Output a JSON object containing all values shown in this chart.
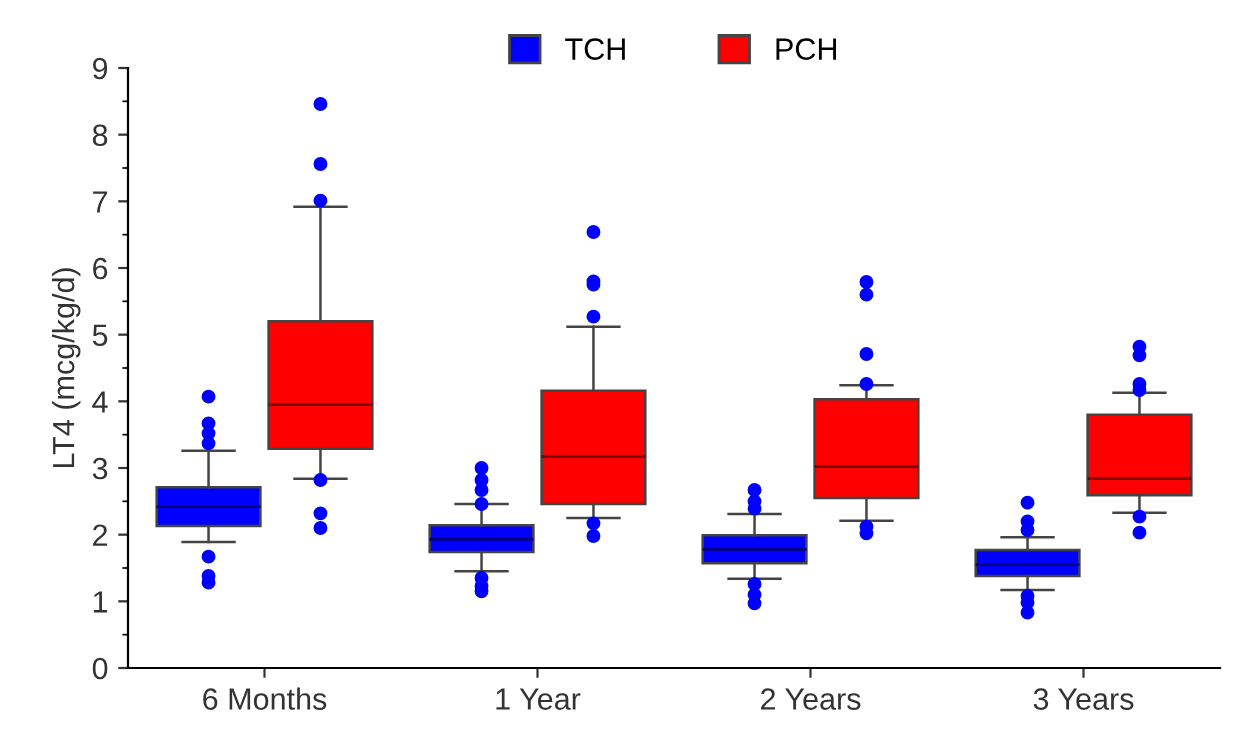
{
  "chart_data": {
    "type": "box",
    "ylabel": "LT4 (mcg/kg/d)",
    "categories": [
      "6 Months",
      "1 Year",
      "2 Years",
      "3 Years"
    ],
    "ylim": [
      0,
      9
    ],
    "yticks": [
      0,
      1,
      2,
      3,
      4,
      5,
      6,
      7,
      8,
      9
    ],
    "grid": false,
    "legend": "top",
    "series": [
      {
        "name": "TCH",
        "color": "#0000ff",
        "boxes": [
          {
            "low": 1.89,
            "q1": 2.13,
            "median": 2.42,
            "q3": 2.71,
            "high": 3.26,
            "outliers": [
              4.07,
              3.67,
              3.52,
              3.37,
              1.67,
              1.38,
              1.28
            ]
          },
          {
            "low": 1.45,
            "q1": 1.74,
            "median": 1.93,
            "q3": 2.14,
            "high": 2.46,
            "outliers": [
              3.0,
              2.82,
              2.67,
              2.46,
              1.35,
              1.23,
              1.15
            ]
          },
          {
            "low": 1.34,
            "q1": 1.57,
            "median": 1.78,
            "q3": 1.99,
            "high": 2.31,
            "outliers": [
              2.67,
              2.5,
              2.39,
              1.26,
              1.1,
              0.97
            ]
          },
          {
            "low": 1.17,
            "q1": 1.38,
            "median": 1.55,
            "q3": 1.77,
            "high": 1.96,
            "outliers": [
              2.48,
              2.2,
              2.07,
              1.08,
              0.98,
              0.83
            ]
          }
        ]
      },
      {
        "name": "PCH",
        "color": "#ff0000",
        "boxes": [
          {
            "low": 2.84,
            "q1": 3.29,
            "median": 3.95,
            "q3": 5.2,
            "high": 6.92,
            "outliers": [
              8.46,
              7.56,
              7.01,
              2.82,
              2.32,
              2.1
            ]
          },
          {
            "low": 2.25,
            "q1": 2.46,
            "median": 3.17,
            "q3": 4.16,
            "high": 5.12,
            "outliers": [
              6.54,
              5.8,
              5.75,
              5.27,
              2.17,
              1.98
            ]
          },
          {
            "low": 2.21,
            "q1": 2.55,
            "median": 3.02,
            "q3": 4.03,
            "high": 4.24,
            "outliers": [
              5.79,
              5.6,
              4.71,
              4.26,
              2.12,
              2.02
            ]
          },
          {
            "low": 2.33,
            "q1": 2.59,
            "median": 2.84,
            "q3": 3.8,
            "high": 4.13,
            "outliers": [
              4.82,
              4.69,
              4.26,
              4.17,
              2.27,
              2.03
            ]
          }
        ]
      }
    ]
  }
}
